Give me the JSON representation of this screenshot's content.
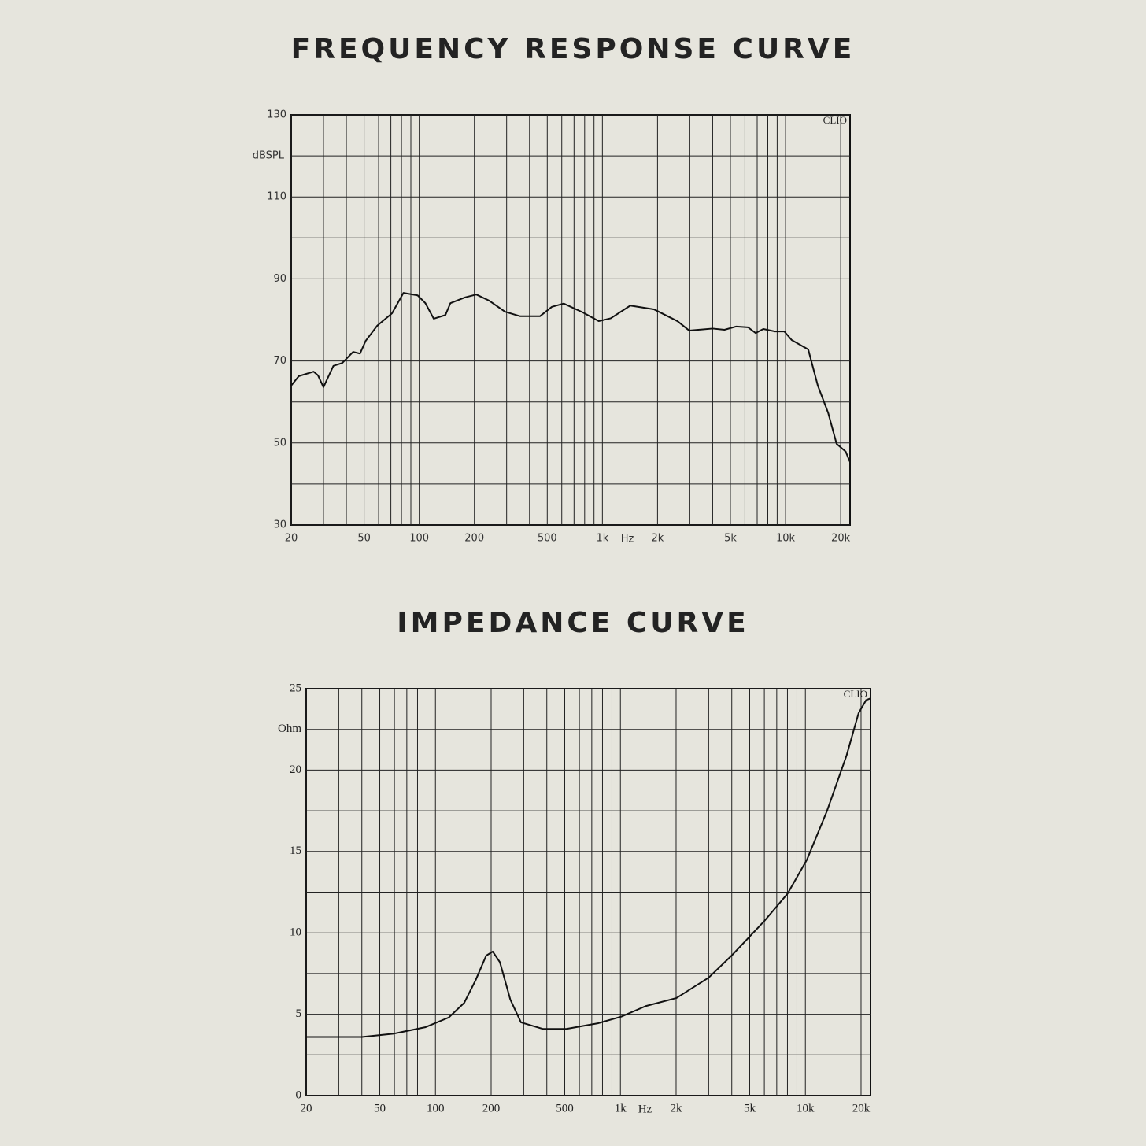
{
  "chart_data": [
    {
      "type": "line",
      "title": "FREQUENCY RESPONSE CURVE",
      "ylabel": "dBSPL",
      "xlabel": "Hz",
      "annotation": "CLIO",
      "xscale": "log",
      "xlim": [
        20,
        22500
      ],
      "ylim": [
        30,
        130
      ],
      "grid": true,
      "color": "#111111",
      "xticks": [
        20,
        50,
        100,
        200,
        500,
        {
          "value": 1000,
          "label": "1k"
        },
        {
          "value": 2000,
          "label": "2k"
        },
        {
          "value": 5000,
          "label": "5k"
        },
        {
          "value": 10000,
          "label": "10k"
        },
        {
          "value": 20000,
          "label": "20k"
        }
      ],
      "xminor": [
        30,
        40,
        60,
        70,
        80,
        90,
        300,
        400,
        600,
        700,
        800,
        900,
        3000,
        4000,
        6000,
        7000,
        8000,
        9000
      ],
      "yticks": [
        30,
        50,
        70,
        90,
        110,
        130
      ],
      "yminor": [
        40,
        60,
        80,
        100,
        120
      ],
      "x": [
        20,
        22,
        26.5,
        28,
        30,
        32,
        34,
        38,
        43.5,
        47.5,
        51,
        59,
        71,
        82,
        98,
        108,
        120,
        139,
        148,
        178,
        205,
        241,
        294,
        356,
        456,
        530,
        615,
        785,
        955,
        1110,
        1420,
        1910,
        2570,
        2980,
        4000,
        4640,
        5380,
        6240,
        6870,
        7560,
        8760,
        9850,
        10800,
        13300,
        15000,
        17100,
        19000,
        21300,
        22400
      ],
      "values": [
        64,
        66.3,
        67.4,
        66.5,
        63.6,
        66.3,
        68.8,
        69.5,
        72.2,
        71.8,
        74.9,
        78.6,
        81.6,
        86.6,
        86,
        84.1,
        80.3,
        81.2,
        84.1,
        85.5,
        86.2,
        84.7,
        82,
        80.9,
        80.9,
        83.2,
        84,
        81.8,
        79.7,
        80.4,
        83.5,
        82.6,
        79.7,
        77.4,
        77.9,
        77.6,
        78.4,
        78.2,
        76.8,
        77.8,
        77.2,
        77.2,
        75.1,
        72.8,
        64,
        57.3,
        49.8,
        47.9,
        45.5
      ]
    },
    {
      "type": "line",
      "title": "IMPEDANCE CURVE",
      "ylabel": "Ohm",
      "xlabel": "Hz",
      "annotation": "CLIO",
      "xscale": "log",
      "xlim": [
        20,
        22500
      ],
      "ylim": [
        0,
        25
      ],
      "grid": true,
      "color": "#111111",
      "xticks": [
        20,
        50,
        100,
        200,
        500,
        {
          "value": 1000,
          "label": "1k"
        },
        {
          "value": 2000,
          "label": "2k"
        },
        {
          "value": 5000,
          "label": "5k"
        },
        {
          "value": 10000,
          "label": "10k"
        },
        {
          "value": 20000,
          "label": "20k"
        }
      ],
      "xminor": [
        30,
        40,
        60,
        70,
        80,
        90,
        300,
        400,
        600,
        700,
        800,
        900,
        3000,
        4000,
        6000,
        7000,
        8000,
        9000
      ],
      "yticks": [
        0,
        5,
        10,
        15,
        20,
        25
      ],
      "yminor": [
        2.5,
        7.5,
        12.5,
        17.5,
        22.5
      ],
      "x": [
        20,
        40,
        59,
        88,
        118,
        143,
        165,
        188,
        204,
        223,
        254,
        290,
        380,
        510,
        760,
        1010,
        1370,
        2010,
        3000,
        4030,
        5970,
        8000,
        10200,
        13100,
        16700,
        19400,
        21300,
        22400
      ],
      "values": [
        3.6,
        3.6,
        3.8,
        4.2,
        4.8,
        5.7,
        7.1,
        8.6,
        8.85,
        8.2,
        5.9,
        4.5,
        4.1,
        4.1,
        4.45,
        4.85,
        5.5,
        6.0,
        7.25,
        8.65,
        10.7,
        12.4,
        14.5,
        17.5,
        20.9,
        23.5,
        24.3,
        24.4
      ]
    }
  ]
}
